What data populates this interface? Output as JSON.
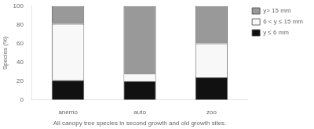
{
  "chart_data": {
    "type": "bar",
    "stacked": true,
    "categories": [
      "anemo",
      "auto",
      "zoo"
    ],
    "series": [
      {
        "name": "y ≤ 6 mm",
        "color": "#111111",
        "values": [
          21,
          20,
          24
        ]
      },
      {
        "name": "6 < y ≤ 15 mm",
        "color": "#f8f8f8",
        "values": [
          60,
          8,
          36
        ]
      },
      {
        "name": "y> 15 mm",
        "color": "#999999",
        "values": [
          19,
          72,
          40
        ]
      }
    ],
    "ylabel": "Species (%)",
    "xlabel": "All canopy tree species in second growth and old growth sites.",
    "ylim": [
      0,
      100
    ],
    "yticks": [
      0,
      20,
      40,
      60,
      80,
      100
    ],
    "grid": false,
    "legend": "right"
  }
}
